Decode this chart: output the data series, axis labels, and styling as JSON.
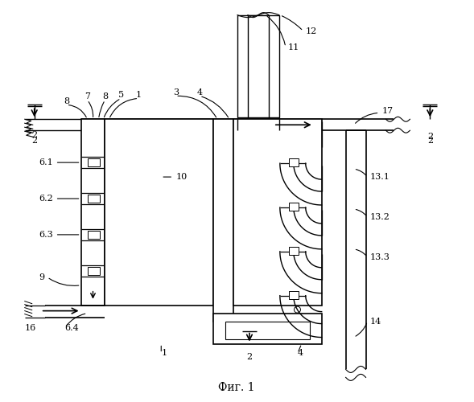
{
  "title": "Фиг. 1",
  "bg_color": "#ffffff",
  "line_color": "#000000",
  "fig_width": 5.89,
  "fig_height": 5.0,
  "lfs": 8.0
}
